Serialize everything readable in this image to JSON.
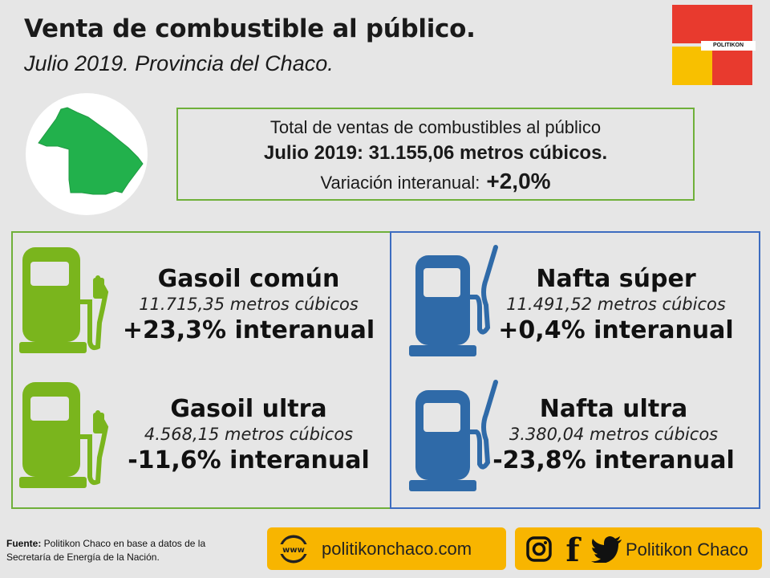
{
  "header": {
    "title": "Venta de combustible al público.",
    "subtitle": "Julio 2019. Provincia del Chaco."
  },
  "logo": {
    "text": "POLITIKON",
    "colors": [
      "#e83a2e",
      "#f8c000"
    ]
  },
  "summary": {
    "line1": "Total de ventas de combustibles al público",
    "line2": "Julio 2019: 31.155,06 metros cúbicos.",
    "line3_label": "Variación interanual:",
    "line3_value": "+2,0%"
  },
  "fuels": {
    "gasoil_comun": {
      "name": "Gasoil común",
      "volume": "11.715,35 metros cúbicos",
      "variation": "+23,3% interanual",
      "color": "#7ab51d"
    },
    "gasoil_ultra": {
      "name": "Gasoil ultra",
      "volume": "4.568,15 metros cúbicos",
      "variation": "-11,6% interanual",
      "color": "#7ab51d"
    },
    "nafta_super": {
      "name": "Nafta súper",
      "volume": "11.491,52 metros cúbicos",
      "variation": "+0,4% interanual",
      "color": "#2f6aa8"
    },
    "nafta_ultra": {
      "name": "Nafta ultra",
      "volume": "3.380,04 metros cúbicos",
      "variation": "-23,8% interanual",
      "color": "#2f6aa8"
    }
  },
  "footer": {
    "source_label": "Fuente:",
    "source_text": " Politikon Chaco en base a datos de la Secretaría de Energía de la Nación.",
    "web_icon_text": "www",
    "website": "politikonchaco.com",
    "social_handle": "Politikon Chaco",
    "facebook_glyph": "f",
    "pill_color": "#f8b500"
  }
}
